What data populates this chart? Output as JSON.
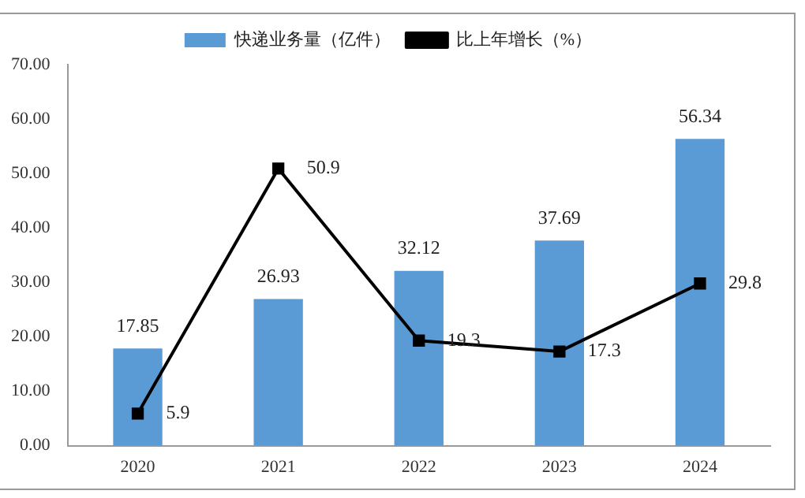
{
  "chart_data": {
    "type": "bar",
    "categories": [
      "2020",
      "2021",
      "2022",
      "2023",
      "2024"
    ],
    "series": [
      {
        "name": "快递业务量（亿件）",
        "color": "#5b9bd5",
        "values": [
          17.85,
          26.93,
          32.12,
          37.69,
          56.34
        ]
      },
      {
        "name": "比上年增长（%）",
        "type": "line",
        "color": "#000000",
        "values": [
          5.9,
          50.9,
          19.3,
          17.3,
          29.8
        ]
      }
    ],
    "ylim": [
      0,
      70
    ],
    "yticks": [
      {
        "value": 0,
        "label": "0.00"
      },
      {
        "value": 10,
        "label": "10.00"
      },
      {
        "value": 20,
        "label": "20.00"
      },
      {
        "value": 30,
        "label": "30.00"
      },
      {
        "value": 40,
        "label": "40.00"
      },
      {
        "value": 50,
        "label": "50.00"
      },
      {
        "value": 60,
        "label": "60.00"
      },
      {
        "value": 70,
        "label": "70.00"
      }
    ],
    "grid": false,
    "legend": "top",
    "marker": "square",
    "line_style": "solid",
    "data_labels": true
  }
}
